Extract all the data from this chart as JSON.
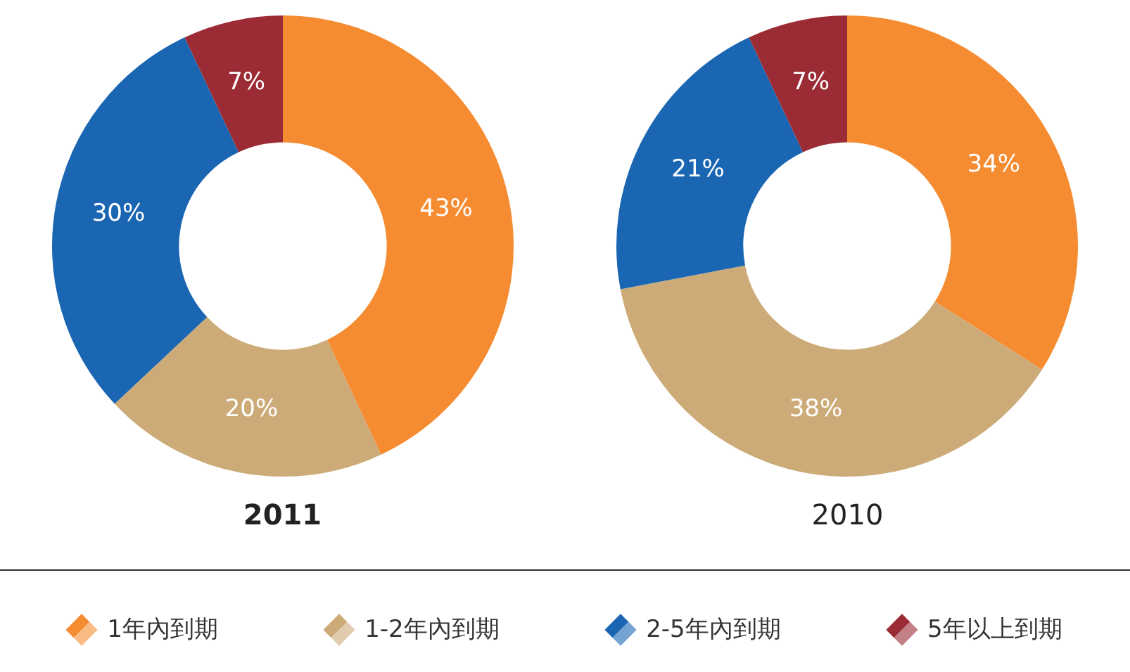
{
  "chart_data": [
    {
      "type": "donut",
      "title": "2011",
      "categories": [
        "1年內到期",
        "1-2年內到期",
        "2-5年內到期",
        "5年以上到期"
      ],
      "values": [
        43,
        20,
        30,
        7
      ],
      "colors": [
        "#f58c32",
        "#ccab78",
        "#1a66b3",
        "#9b2c35"
      ],
      "value_labels": [
        "43%",
        "20%",
        "30%",
        "7%"
      ],
      "legend": "bottom"
    },
    {
      "type": "donut",
      "title": "2010",
      "categories": [
        null,
        null,
        null,
        null
      ],
      "values": [
        34,
        38,
        21,
        7
      ],
      "colors": [
        "#f58c32",
        "#ccab78",
        "#1a66b3",
        "#9b2c35"
      ],
      "value_labels": [
        "34%",
        "38%",
        "21%",
        "7%"
      ]
    }
  ]
}
